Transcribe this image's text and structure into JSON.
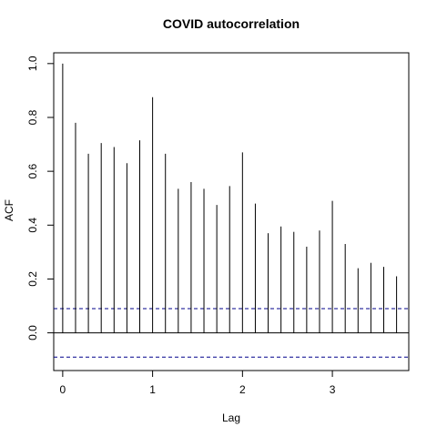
{
  "chart_data": {
    "type": "bar",
    "title": "COVID autocorrelation",
    "xlabel": "Lag",
    "ylabel": "ACF",
    "xlim": [
      -0.1,
      3.85
    ],
    "ylim": [
      -0.14,
      1.04
    ],
    "x_ticks": [
      0,
      1,
      2,
      3
    ],
    "y_ticks": [
      0.0,
      0.2,
      0.4,
      0.6,
      0.8,
      1.0
    ],
    "x_tick_labels": [
      "0",
      "1",
      "2",
      "3"
    ],
    "y_tick_labels": [
      "0.0",
      "0.2",
      "0.4",
      "0.6",
      "0.8",
      "1.0"
    ],
    "confidence_bound": 0.09,
    "colors": {
      "bars": "#000000",
      "bounds": "#00008b",
      "axes": "#000000"
    },
    "series": [
      {
        "x": [
          0.0,
          0.1429,
          0.2857,
          0.4286,
          0.5714,
          0.7143,
          0.8571,
          1.0,
          1.1429,
          1.2857,
          1.4286,
          1.5714,
          1.7143,
          1.8571,
          2.0,
          2.1429,
          2.2857,
          2.4286,
          2.5714,
          2.7143,
          2.8571,
          3.0,
          3.1429,
          3.2857,
          3.4286,
          3.5714,
          3.7143
        ],
        "values": [
          1.0,
          0.78,
          0.665,
          0.705,
          0.69,
          0.63,
          0.715,
          0.875,
          0.665,
          0.535,
          0.56,
          0.535,
          0.475,
          0.545,
          0.67,
          0.48,
          0.37,
          0.395,
          0.375,
          0.32,
          0.38,
          0.49,
          0.33,
          0.24,
          0.26,
          0.245,
          0.21
        ]
      }
    ]
  }
}
